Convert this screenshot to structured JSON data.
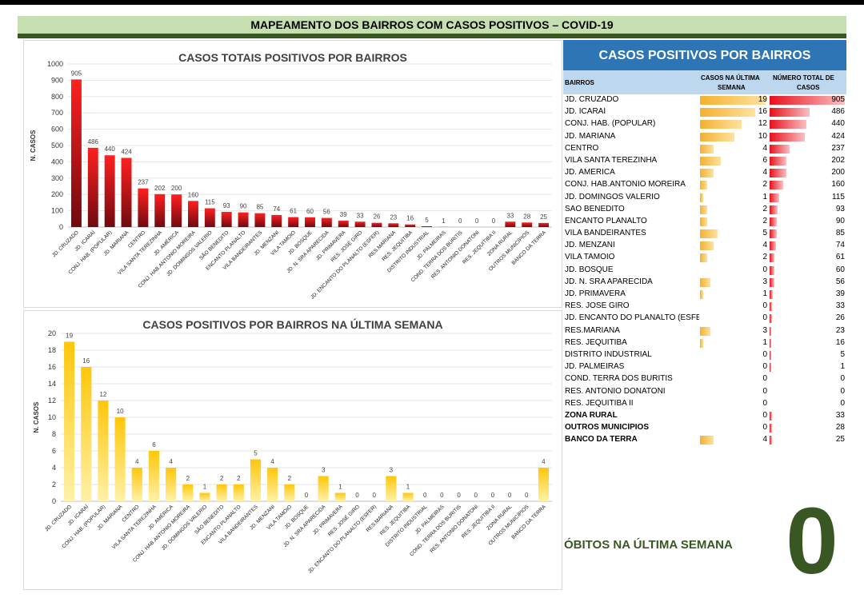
{
  "header": {
    "title": "MAPEAMENTO DOS BAIRROS COM CASOS POSITIVOS – COVID-19"
  },
  "colors": {
    "header_bg": "#c5dfb0",
    "dark_green": "#385723",
    "table_blue": "#2e75b6",
    "table_subhead": "#bdd7ee",
    "red_bar": "#e8101a",
    "yellow_bar": "#f4b030"
  },
  "chart_data": [
    {
      "type": "bar",
      "title": "CASOS TOTAIS POSITIVOS POR BAIRROS",
      "ylabel": "N. CASOS",
      "xlabel": "",
      "ylim": [
        0,
        1000
      ],
      "yticks": [
        0,
        100,
        200,
        300,
        400,
        500,
        600,
        700,
        800,
        900,
        1000
      ],
      "grid": true,
      "categories": [
        "JD. CRUZADO",
        "JD. ICARAÍ",
        "CONJ. HAB. (POPULAR)",
        "JD. MARIANA",
        "CENTRO",
        "VILA SANTA TEREZINHA",
        "JD. AMÉRICA",
        "CONJ. HAB.ANTONIO MOREIRA",
        "JD. DOMINGOS VALERIO",
        "SÃO BENEDITO",
        "ENCANTO PLANALTO",
        "VILA BANDEIRANTES",
        "JD. MENZANI",
        "VILA TAMOIO",
        "JD. BOSQUE",
        "JD. N. SRA APARECIDA",
        "JD. PRIMAVERA",
        "RES. JOSÉ GIRO",
        "JD. ENCANTO DO PLANALTO (ESFER)",
        "RES.MARIANA",
        "RES. JEQUITIBA",
        "DISTRITO INDUSTRIAL",
        "JD. PALMEIRAS",
        "COND. TERRA DOS BURITIS",
        "RES. ANTONIO DONATONI",
        "RES. JEQUITIBA II",
        "ZONA RURAL",
        "OUTROS MUNICÍPIOS",
        "BANCO DA TERRA"
      ],
      "values": [
        905,
        486,
        440,
        424,
        237,
        202,
        200,
        160,
        115,
        93,
        90,
        85,
        74,
        61,
        60,
        56,
        39,
        33,
        26,
        23,
        16,
        5,
        1,
        0,
        0,
        0,
        33,
        28,
        25
      ]
    },
    {
      "type": "bar",
      "title": "CASOS POSITIVOS POR BAIRROS NA ÚLTIMA SEMANA",
      "ylabel": "N. CASOS",
      "xlabel": "",
      "ylim": [
        0,
        20
      ],
      "yticks": [
        0,
        2,
        4,
        6,
        8,
        10,
        12,
        14,
        16,
        18,
        20
      ],
      "grid": true,
      "categories": [
        "JD. CRUZADO",
        "JD. ICARAÍ",
        "CONJ. HAB. (POPULAR)",
        "JD. MARIANA",
        "CENTRO",
        "VILA SANTA TEREZINHA",
        "JD. AMÉRICA",
        "CONJ. HAB.ANTONIO MOREIRA",
        "JD. DOMINGOS VALERIO",
        "SÃO BENEDITO",
        "ENCANTO PLANALTO",
        "VILA BANDEIRANTES",
        "JD. MENZANI",
        "VILA TAMOIO",
        "JD. BOSQUE",
        "JD. N. SRA APARECIDA",
        "JD. PRIMAVERA",
        "RES. JOSÉ GIRO",
        "JD. ENCANTO DO PLANALTO (ESFER)",
        "RES.MARIANA",
        "RES. JEQUITIBA",
        "DISTRITO INDUSTRIAL",
        "JD. PALMEIRAS",
        "COND. TERRA DOS BURITIS",
        "RES. ANTONIO DONATONI",
        "RES. JEQUITIBA II",
        "ZONA RURAL",
        "OUTROS MUNICÍPIOS",
        "BANCO DA TERRA"
      ],
      "values": [
        19,
        16,
        12,
        10,
        4,
        6,
        4,
        2,
        1,
        2,
        2,
        5,
        4,
        2,
        0,
        3,
        1,
        0,
        0,
        3,
        1,
        0,
        0,
        0,
        0,
        0,
        0,
        0,
        4
      ]
    }
  ],
  "table": {
    "title": "CASOS POSITIVOS POR BAIRROS",
    "col_bairros": "BAIRROS",
    "col_semana_1": "CASOS NA ÚLTIMA",
    "col_semana_2": "SEMANA",
    "col_total_1": "NÚMERO TOTAL DE",
    "col_total_2": "CASOS",
    "rows": [
      {
        "name": "JD. CRUZADO",
        "week": "19",
        "total": "905"
      },
      {
        "name": "JD. ICARAÍ",
        "week": "16",
        "total": "486"
      },
      {
        "name": "CONJ. HAB. (POPULAR)",
        "week": "12",
        "total": "440"
      },
      {
        "name": "JD. MARIANA",
        "week": "10",
        "total": "424"
      },
      {
        "name": "CENTRO",
        "week": "4",
        "total": "237"
      },
      {
        "name": "VILA SANTA TEREZINHA",
        "week": "6",
        "total": "202"
      },
      {
        "name": "JD. AMÉRICA",
        "week": "4",
        "total": "200"
      },
      {
        "name": "CONJ. HAB.ANTONIO MOREIRA",
        "week": "2",
        "total": "160"
      },
      {
        "name": "JD. DOMINGOS VALERIO",
        "week": "1",
        "total": "115"
      },
      {
        "name": "SÃO BENEDITO",
        "week": "2",
        "total": "93"
      },
      {
        "name": "ENCANTO PLANALTO",
        "week": "2",
        "total": "90"
      },
      {
        "name": "VILA BANDEIRANTES",
        "week": "5",
        "total": "85"
      },
      {
        "name": "JD. MENZANI",
        "week": "4",
        "total": "74"
      },
      {
        "name": "VILA TAMOIO",
        "week": "2",
        "total": "61"
      },
      {
        "name": "JD. BOSQUE",
        "week": "0",
        "total": "60"
      },
      {
        "name": "JD. N. SRA APARECIDA",
        "week": "3",
        "total": "56"
      },
      {
        "name": "JD. PRIMAVERA",
        "week": "1",
        "total": "39"
      },
      {
        "name": "RES. JOSÉ GIRO",
        "week": "0",
        "total": "33"
      },
      {
        "name": "JD. ENCANTO DO PLANALTO (ESFER)",
        "week": "0",
        "total": "26"
      },
      {
        "name": "RES.MARIANA",
        "week": "3",
        "total": "23"
      },
      {
        "name": "RES. JEQUITIBA",
        "week": "1",
        "total": "16"
      },
      {
        "name": "DISTRITO INDUSTRIAL",
        "week": "0",
        "total": "5"
      },
      {
        "name": "JD. PALMEIRAS",
        "week": "0",
        "total": "1"
      },
      {
        "name": "COND. TERRA DOS BURITIS",
        "week": "0",
        "total": "0"
      },
      {
        "name": "RES. ANTONIO DONATONI",
        "week": "0",
        "total": "0"
      },
      {
        "name": "RES. JEQUITIBA II",
        "week": "0",
        "total": "0"
      },
      {
        "name": "ZONA RURAL",
        "week": "0",
        "total": "33",
        "bold": true
      },
      {
        "name": "OUTROS MUNICÍPIOS",
        "week": "0",
        "total": "28",
        "bold": true
      },
      {
        "name": "BANCO DA TERRA",
        "week": "4",
        "total": "25",
        "bold": true
      }
    ]
  },
  "obitos": {
    "label": "ÓBITOS NA ÚLTIMA SEMANA",
    "value": "0"
  }
}
